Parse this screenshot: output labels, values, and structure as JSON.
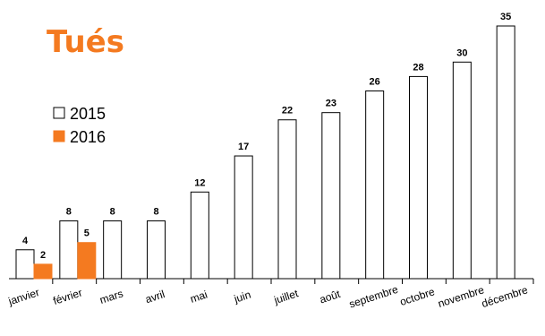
{
  "chart_data": {
    "type": "bar",
    "title": "Tués",
    "xlabel": "",
    "ylabel": "",
    "ylim": [
      0,
      35
    ],
    "grid": false,
    "legend_position": "left",
    "categories": [
      "janvier",
      "février",
      "mars",
      "avril",
      "mai",
      "juin",
      "juillet",
      "août",
      "septembre",
      "octobre",
      "novembre",
      "décembre"
    ],
    "series": [
      {
        "name": "2015",
        "color": "#ffffff",
        "stroke": "#000000",
        "values": [
          4,
          8,
          8,
          8,
          12,
          17,
          22,
          23,
          26,
          28,
          30,
          35
        ]
      },
      {
        "name": "2016",
        "color": "#f47a20",
        "stroke": "#f47a20",
        "values": [
          2,
          5,
          null,
          null,
          null,
          null,
          null,
          null,
          null,
          null,
          null,
          null
        ]
      }
    ]
  },
  "colors": {
    "title": "#f47a20",
    "axis": "#000000"
  }
}
